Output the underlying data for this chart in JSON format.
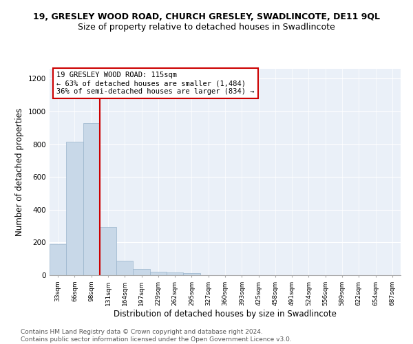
{
  "title1": "19, GRESLEY WOOD ROAD, CHURCH GRESLEY, SWADLINCOTE, DE11 9QL",
  "title2": "Size of property relative to detached houses in Swadlincote",
  "xlabel": "Distribution of detached houses by size in Swadlincote",
  "ylabel": "Number of detached properties",
  "categories": [
    "33sqm",
    "66sqm",
    "98sqm",
    "131sqm",
    "164sqm",
    "197sqm",
    "229sqm",
    "262sqm",
    "295sqm",
    "327sqm",
    "360sqm",
    "393sqm",
    "425sqm",
    "458sqm",
    "491sqm",
    "524sqm",
    "556sqm",
    "589sqm",
    "622sqm",
    "654sqm",
    "687sqm"
  ],
  "values": [
    190,
    815,
    930,
    295,
    90,
    38,
    20,
    18,
    12,
    0,
    0,
    0,
    0,
    0,
    0,
    0,
    0,
    0,
    0,
    0,
    0
  ],
  "bar_color": "#c8d8e8",
  "bar_edge_color": "#9ab4cc",
  "vline_color": "#cc0000",
  "annotation_text": "19 GRESLEY WOOD ROAD: 115sqm\n← 63% of detached houses are smaller (1,484)\n36% of semi-detached houses are larger (834) →",
  "annotation_box_color": "#ffffff",
  "annotation_box_edge": "#cc0000",
  "ylim": [
    0,
    1260
  ],
  "yticks": [
    0,
    200,
    400,
    600,
    800,
    1000,
    1200
  ],
  "bg_color": "#eaf0f8",
  "footer": "Contains HM Land Registry data © Crown copyright and database right 2024.\nContains public sector information licensed under the Open Government Licence v3.0.",
  "title1_fontsize": 9,
  "title2_fontsize": 9,
  "xlabel_fontsize": 8.5,
  "ylabel_fontsize": 8.5,
  "annotation_fontsize": 7.5,
  "footer_fontsize": 6.5
}
